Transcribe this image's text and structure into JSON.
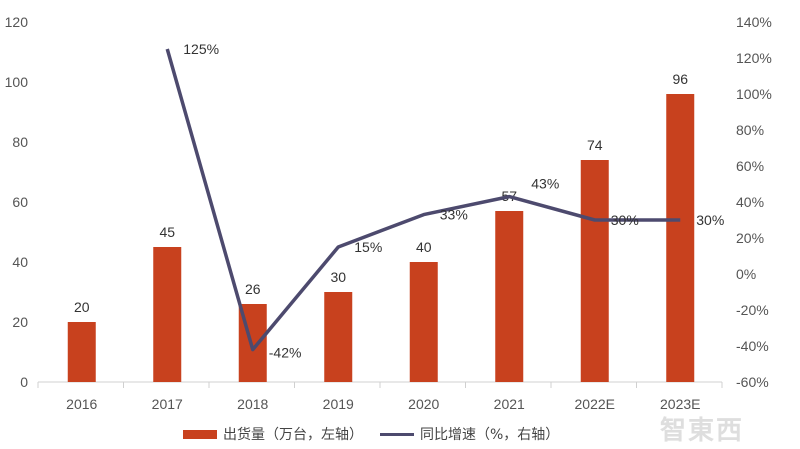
{
  "chart_data": {
    "type": "bar+line",
    "categories": [
      "2016",
      "2017",
      "2018",
      "2019",
      "2020",
      "2021",
      "2022E",
      "2023E"
    ],
    "series": [
      {
        "name": "出货量（万台，左轴）",
        "type": "bar",
        "axis": "left",
        "color": "#c8411e",
        "values": [
          20,
          45,
          26,
          30,
          40,
          57,
          74,
          96
        ]
      },
      {
        "name": "同比增速（%，右轴）",
        "type": "line",
        "axis": "right",
        "color": "#4d4a6e",
        "values": [
          null,
          125,
          -42,
          15,
          33,
          43,
          30,
          30
        ]
      }
    ],
    "left_axis": {
      "ylim": [
        0,
        120
      ],
      "ticks": [
        "0",
        "20",
        "40",
        "60",
        "80",
        "100",
        "120"
      ]
    },
    "right_axis": {
      "ylim": [
        -60,
        140
      ],
      "ticks": [
        "-60%",
        "-40%",
        "-20%",
        "0%",
        "20%",
        "40%",
        "60%",
        "80%",
        "100%",
        "120%",
        "140%"
      ]
    },
    "bar_labels": [
      "20",
      "45",
      "26",
      "30",
      "40",
      "57",
      "74",
      "96"
    ],
    "line_labels": [
      "",
      "125%",
      "-42%",
      "15%",
      "33%",
      "43%",
      "30%",
      "30%"
    ],
    "grid": false,
    "legend_position": "bottom"
  },
  "legend": {
    "bar": "出货量（万台，左轴）",
    "line": "同比增速（%，右轴）"
  },
  "watermark": "智東西"
}
